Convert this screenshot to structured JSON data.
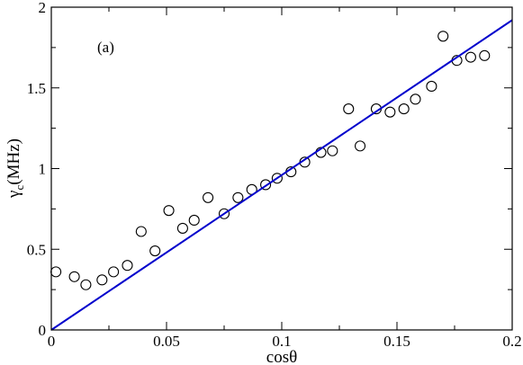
{
  "chart_data": {
    "type": "scatter",
    "annotation": "(a)",
    "xlabel": "cosθ",
    "ylabel_main": "γ",
    "ylabel_sub": "c",
    "ylabel_unit": "(MHz)",
    "xlim": [
      0,
      0.2
    ],
    "ylim": [
      0,
      2
    ],
    "x_ticks": [
      0,
      0.05,
      0.1,
      0.15,
      0.2
    ],
    "x_tick_labels": [
      "0",
      "0.05",
      "0.1",
      "0.15",
      "0.2"
    ],
    "y_ticks": [
      0,
      0.5,
      1,
      1.5,
      2
    ],
    "y_tick_labels": [
      "0",
      "0.5",
      "1",
      "1.5",
      "2"
    ],
    "grid": false,
    "series": [
      {
        "type": "scatter",
        "marker": "open-circle",
        "color": "#000000",
        "points": [
          [
            0.002,
            0.36
          ],
          [
            0.01,
            0.33
          ],
          [
            0.015,
            0.28
          ],
          [
            0.022,
            0.31
          ],
          [
            0.027,
            0.36
          ],
          [
            0.033,
            0.4
          ],
          [
            0.039,
            0.61
          ],
          [
            0.045,
            0.49
          ],
          [
            0.051,
            0.74
          ],
          [
            0.057,
            0.63
          ],
          [
            0.062,
            0.68
          ],
          [
            0.068,
            0.82
          ],
          [
            0.075,
            0.72
          ],
          [
            0.081,
            0.82
          ],
          [
            0.087,
            0.87
          ],
          [
            0.093,
            0.9
          ],
          [
            0.098,
            0.94
          ],
          [
            0.104,
            0.98
          ],
          [
            0.11,
            1.04
          ],
          [
            0.117,
            1.1
          ],
          [
            0.122,
            1.11
          ],
          [
            0.129,
            1.37
          ],
          [
            0.134,
            1.14
          ],
          [
            0.141,
            1.37
          ],
          [
            0.147,
            1.35
          ],
          [
            0.153,
            1.37
          ],
          [
            0.158,
            1.43
          ],
          [
            0.165,
            1.51
          ],
          [
            0.17,
            1.82
          ],
          [
            0.176,
            1.67
          ],
          [
            0.182,
            1.69
          ],
          [
            0.188,
            1.7
          ]
        ]
      },
      {
        "type": "line",
        "color": "#0000cc",
        "points": [
          [
            0,
            0
          ],
          [
            0.2,
            1.92
          ]
        ]
      }
    ]
  }
}
